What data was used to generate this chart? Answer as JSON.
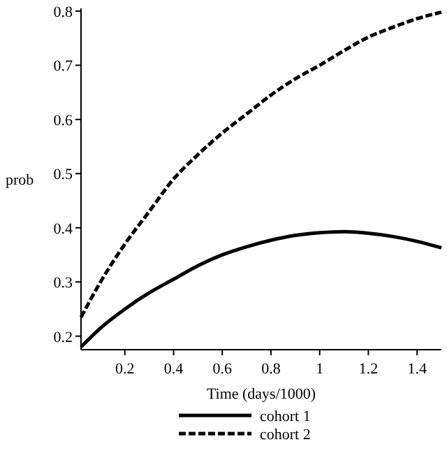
{
  "chart_data": {
    "type": "line",
    "xlabel": "Time (days/1000)",
    "ylabel": "prob",
    "xlim": [
      0.02,
      1.5
    ],
    "xticks": [
      0.2,
      0.4,
      0.6,
      0.8,
      1,
      1.2,
      1.4
    ],
    "ylim": [
      0.175,
      0.805
    ],
    "yticks": [
      0.2,
      0.3,
      0.4,
      0.5,
      0.6,
      0.7,
      0.8
    ],
    "legend": "bottom",
    "grid": false,
    "series": [
      {
        "name": "cohort 1",
        "color": "#000000",
        "line_style": "solid",
        "x": [
          0.02,
          0.1,
          0.2,
          0.3,
          0.4,
          0.5,
          0.6,
          0.7,
          0.8,
          0.9,
          1.0,
          1.1,
          1.2,
          1.3,
          1.4,
          1.5
        ],
        "values": [
          0.18,
          0.215,
          0.25,
          0.28,
          0.305,
          0.33,
          0.35,
          0.365,
          0.377,
          0.386,
          0.391,
          0.393,
          0.39,
          0.384,
          0.375,
          0.363
        ]
      },
      {
        "name": "cohort 2",
        "color": "#000000",
        "line_style": "dashed",
        "x": [
          0.02,
          0.1,
          0.2,
          0.3,
          0.4,
          0.5,
          0.6,
          0.7,
          0.8,
          0.9,
          1.0,
          1.1,
          1.2,
          1.3,
          1.4,
          1.5
        ],
        "values": [
          0.235,
          0.3,
          0.37,
          0.43,
          0.49,
          0.535,
          0.575,
          0.61,
          0.645,
          0.675,
          0.7,
          0.727,
          0.752,
          0.77,
          0.786,
          0.798
        ]
      }
    ]
  }
}
